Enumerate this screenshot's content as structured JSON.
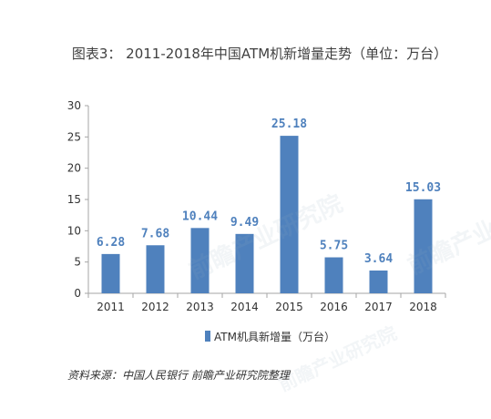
{
  "title": "图表3：  2011-2018年中国ATM机新增量走势（单位：万台）",
  "source": "资料来源：中国人民银行  前瞻产业研究院整理",
  "watermark": "前瞻产业研究院",
  "colors": {
    "bar": "#4f81bd",
    "data_label": "#4f81bd",
    "axis": "#a6a6a6",
    "tick_text": "#333333"
  },
  "chart_data": {
    "type": "bar",
    "title": "图表3：  2011-2018年中国ATM机新增量走势（单位：万台）",
    "categories": [
      "2011",
      "2012",
      "2013",
      "2014",
      "2015",
      "2016",
      "2017",
      "2018"
    ],
    "series": [
      {
        "name": "ATM机具新增量（万台）",
        "values": [
          6.28,
          7.68,
          10.44,
          9.49,
          25.18,
          5.75,
          3.64,
          15.03
        ]
      }
    ],
    "data_labels": [
      "6.28",
      "7.68",
      "10.44",
      "9.49",
      "25.18",
      "5.75",
      "3.64",
      "15.03"
    ],
    "ylim": [
      0,
      30
    ],
    "yticks": [
      0,
      5,
      10,
      15,
      20,
      25,
      30
    ],
    "grid": false,
    "legend": "bottom"
  }
}
